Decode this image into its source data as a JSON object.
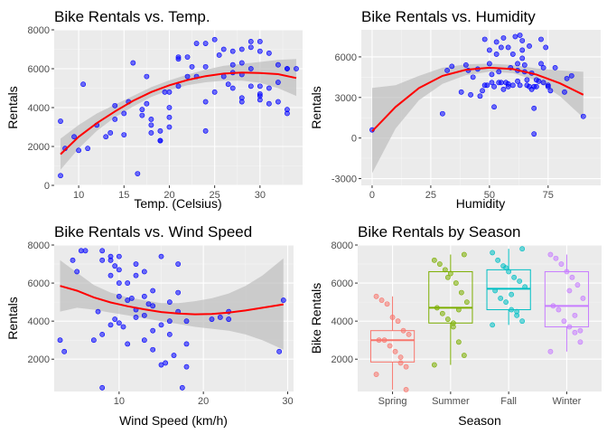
{
  "chart_data": [
    {
      "type": "scatter",
      "title": "Bike Rentals vs. Temp.",
      "xlabel": "Temp. (Celsius)",
      "ylabel": "Rentals",
      "xlim": [
        7.3,
        34.7
      ],
      "ylim": [
        0,
        8000
      ],
      "xticks": [
        10,
        15,
        20,
        25,
        30,
        35
      ],
      "yticks": [
        0,
        2000,
        4000,
        6000,
        8000
      ],
      "grid": true,
      "point_color": "#0000ff",
      "smooth_color": "#ff0000",
      "band_color": "#bebebe",
      "points": [
        [
          8,
          3300
        ],
        [
          8,
          500
        ],
        [
          8.5,
          1900
        ],
        [
          9.5,
          2500
        ],
        [
          10,
          1800
        ],
        [
          10.5,
          5200
        ],
        [
          11,
          1900
        ],
        [
          12,
          3100
        ],
        [
          13,
          2500
        ],
        [
          13.5,
          2700
        ],
        [
          14,
          4100
        ],
        [
          14,
          3400
        ],
        [
          15,
          3700
        ],
        [
          15,
          2600
        ],
        [
          15.5,
          4300
        ],
        [
          16,
          6300
        ],
        [
          16.5,
          600
        ],
        [
          17,
          3600
        ],
        [
          17,
          3900
        ],
        [
          17.5,
          5600
        ],
        [
          17.5,
          4200
        ],
        [
          18,
          3400
        ],
        [
          18,
          3100
        ],
        [
          18,
          2700
        ],
        [
          19,
          2300
        ],
        [
          19,
          2800
        ],
        [
          19,
          2300
        ],
        [
          19.5,
          4800
        ],
        [
          20,
          3000
        ],
        [
          20,
          3500
        ],
        [
          20,
          4000
        ],
        [
          20,
          4800
        ],
        [
          21,
          6600
        ],
        [
          21,
          5100
        ],
        [
          21,
          6500
        ],
        [
          22,
          5600
        ],
        [
          22,
          6600
        ],
        [
          22.5,
          6100
        ],
        [
          23,
          7300
        ],
        [
          23,
          5600
        ],
        [
          24,
          7300
        ],
        [
          24,
          6100
        ],
        [
          24,
          4300
        ],
        [
          24,
          2800
        ],
        [
          25,
          7500
        ],
        [
          25,
          4800
        ],
        [
          25.5,
          6700
        ],
        [
          26,
          7000
        ],
        [
          26,
          5600
        ],
        [
          26.5,
          5200
        ],
        [
          27,
          6200
        ],
        [
          27,
          6900
        ],
        [
          27,
          5800
        ],
        [
          27,
          5000
        ],
        [
          28,
          7000
        ],
        [
          28,
          5700
        ],
        [
          28,
          6300
        ],
        [
          28,
          4500
        ],
        [
          28,
          4300
        ],
        [
          29,
          7400
        ],
        [
          29,
          7100
        ],
        [
          29,
          6000
        ],
        [
          29,
          5100
        ],
        [
          30,
          7400
        ],
        [
          30,
          6900
        ],
        [
          30,
          5100
        ],
        [
          30,
          4700
        ],
        [
          30,
          4600
        ],
        [
          30,
          4400
        ],
        [
          31,
          6800
        ],
        [
          31,
          5000
        ],
        [
          31,
          4200
        ],
        [
          32,
          5300
        ],
        [
          32,
          6200
        ],
        [
          32,
          4300
        ],
        [
          33,
          6000
        ],
        [
          33,
          6000
        ],
        [
          33,
          3900
        ],
        [
          33,
          3700
        ],
        [
          34,
          6000
        ]
      ],
      "smooth": {
        "x": [
          8,
          10,
          12,
          14,
          16,
          18,
          20,
          22,
          24,
          26,
          28,
          30,
          32,
          34
        ],
        "y": [
          1600,
          2500,
          3200,
          3800,
          4350,
          4800,
          5150,
          5420,
          5620,
          5750,
          5800,
          5780,
          5720,
          5520
        ],
        "lower": [
          800,
          1900,
          2800,
          3500,
          4050,
          4550,
          4900,
          5150,
          5300,
          5380,
          5380,
          5280,
          5000,
          4600
        ],
        "upper": [
          2400,
          3100,
          3700,
          4150,
          4600,
          5050,
          5400,
          5700,
          5950,
          6150,
          6250,
          6350,
          6450,
          6500
        ]
      }
    },
    {
      "type": "scatter",
      "title": "Bike Rentals vs. Humidity",
      "xlabel": "Humidity",
      "ylabel": "Rentals",
      "xlim": [
        -4.6,
        97.4
      ],
      "ylim": [
        -3500,
        8000
      ],
      "xticks": [
        0,
        25,
        50,
        75
      ],
      "yticks": [
        -3000,
        0,
        3000,
        6000
      ],
      "grid": true,
      "point_color": "#0000ff",
      "smooth_color": "#ff0000",
      "band_color": "#bebebe",
      "points": [
        [
          0,
          600
        ],
        [
          30,
          1800
        ],
        [
          32,
          5000
        ],
        [
          34,
          5300
        ],
        [
          38,
          3400
        ],
        [
          40,
          5400
        ],
        [
          41,
          5000
        ],
        [
          42,
          3200
        ],
        [
          43,
          4500
        ],
        [
          45,
          5100
        ],
        [
          46,
          3100
        ],
        [
          47,
          3500
        ],
        [
          48,
          3900
        ],
        [
          48,
          7300
        ],
        [
          49,
          3900
        ],
        [
          50,
          5500
        ],
        [
          50,
          6500
        ],
        [
          51,
          4700
        ],
        [
          51,
          4100
        ],
        [
          52,
          2300
        ],
        [
          52,
          3800
        ],
        [
          53,
          7100
        ],
        [
          53,
          6200
        ],
        [
          54,
          4900
        ],
        [
          54,
          4100
        ],
        [
          55,
          4100
        ],
        [
          55,
          6700
        ],
        [
          56,
          7400
        ],
        [
          56,
          3600
        ],
        [
          57,
          4100
        ],
        [
          58,
          6700
        ],
        [
          58,
          4000
        ],
        [
          58,
          3800
        ],
        [
          59,
          5200
        ],
        [
          60,
          6200
        ],
        [
          60,
          3900
        ],
        [
          61,
          7500
        ],
        [
          62,
          5500
        ],
        [
          62,
          4200
        ],
        [
          62,
          5000
        ],
        [
          63,
          7600
        ],
        [
          63,
          3900
        ],
        [
          64,
          7200
        ],
        [
          64,
          6500
        ],
        [
          64,
          5900
        ],
        [
          65,
          5400
        ],
        [
          65,
          4900
        ],
        [
          66,
          3900
        ],
        [
          66,
          4300
        ],
        [
          67,
          6800
        ],
        [
          67,
          3800
        ],
        [
          68,
          4800
        ],
        [
          68,
          3600
        ],
        [
          69,
          2200
        ],
        [
          69,
          3800
        ],
        [
          69,
          300
        ],
        [
          70,
          4300
        ],
        [
          70,
          3800
        ],
        [
          71,
          4200
        ],
        [
          72,
          5500
        ],
        [
          72,
          7300
        ],
        [
          73,
          5200
        ],
        [
          73,
          4100
        ],
        [
          74,
          6700
        ],
        [
          75,
          3800
        ],
        [
          75,
          3900
        ],
        [
          76,
          3500
        ],
        [
          78,
          5200
        ],
        [
          82,
          3400
        ],
        [
          83,
          4400
        ],
        [
          85,
          4600
        ],
        [
          90,
          1600
        ]
      ],
      "smooth": {
        "x": [
          0,
          10,
          20,
          30,
          40,
          50,
          60,
          70,
          80,
          90
        ],
        "y": [
          500,
          2300,
          3700,
          4600,
          5050,
          5200,
          5100,
          4700,
          4050,
          3200
        ],
        "lower": [
          -2600,
          700,
          2800,
          4000,
          4650,
          4900,
          4800,
          4250,
          3100,
          1500
        ],
        "upper": [
          3700,
          3900,
          4600,
          5200,
          5450,
          5500,
          5400,
          5150,
          5000,
          4900
        ]
      }
    },
    {
      "type": "scatter",
      "title": "Bike Rentals vs. Wind Speed",
      "xlabel": "Wind Speed (km/h)",
      "ylabel": "Rentals",
      "xlim": [
        2.3,
        30.7
      ],
      "ylim": [
        300,
        8000
      ],
      "xticks": [
        10,
        20,
        30
      ],
      "yticks": [
        2000,
        4000,
        6000,
        8000
      ],
      "grid": true,
      "point_color": "#0000ff",
      "smooth_color": "#ff0000",
      "band_color": "#bebebe",
      "points": [
        [
          3,
          3000
        ],
        [
          3.5,
          2400
        ],
        [
          4.5,
          7200
        ],
        [
          5,
          6600
        ],
        [
          5.5,
          7700
        ],
        [
          6,
          7700
        ],
        [
          7,
          3000
        ],
        [
          7.5,
          4500
        ],
        [
          8,
          3300
        ],
        [
          8,
          7200
        ],
        [
          8,
          7700
        ],
        [
          8,
          500
        ],
        [
          9,
          7400
        ],
        [
          9,
          6400
        ],
        [
          9,
          3800
        ],
        [
          9,
          7200
        ],
        [
          9.5,
          6900
        ],
        [
          9.5,
          4100
        ],
        [
          10,
          7400
        ],
        [
          10,
          6700
        ],
        [
          10,
          6000
        ],
        [
          10,
          5300
        ],
        [
          10,
          3900
        ],
        [
          10.5,
          3700
        ],
        [
          11,
          6000
        ],
        [
          11,
          5100
        ],
        [
          11,
          2800
        ],
        [
          11.5,
          5200
        ],
        [
          12,
          7000
        ],
        [
          12,
          6400
        ],
        [
          12,
          4600
        ],
        [
          12,
          4200
        ],
        [
          13,
          6600
        ],
        [
          13,
          5300
        ],
        [
          13,
          4300
        ],
        [
          13,
          3000
        ],
        [
          13.5,
          4900
        ],
        [
          14,
          5600
        ],
        [
          14,
          4800
        ],
        [
          14,
          3500
        ],
        [
          14,
          2500
        ],
        [
          15,
          7400
        ],
        [
          15,
          3800
        ],
        [
          15,
          1700
        ],
        [
          15.5,
          1800
        ],
        [
          16,
          5000
        ],
        [
          16,
          4000
        ],
        [
          16,
          3300
        ],
        [
          16.5,
          2200
        ],
        [
          17,
          5500
        ],
        [
          17,
          4500
        ],
        [
          17,
          7000
        ],
        [
          18,
          4000
        ],
        [
          18,
          2800
        ],
        [
          18,
          1600
        ],
        [
          17.5,
          500
        ],
        [
          21,
          4100
        ],
        [
          22,
          4200
        ],
        [
          23,
          4100
        ],
        [
          23,
          4500
        ],
        [
          29,
          2400
        ],
        [
          29.5,
          5100
        ]
      ],
      "smooth": {
        "x": [
          3,
          5,
          7,
          9,
          11,
          13,
          15,
          17,
          19,
          21,
          23,
          25,
          27,
          29.5
        ],
        "y": [
          5850,
          5600,
          5250,
          4980,
          4780,
          4620,
          4480,
          4400,
          4360,
          4380,
          4450,
          4560,
          4700,
          4880
        ],
        "lower": [
          4500,
          4700,
          4600,
          4450,
          4300,
          4150,
          4000,
          3850,
          3700,
          3600,
          3500,
          3300,
          3000,
          2500
        ],
        "upper": [
          7200,
          6550,
          5900,
          5500,
          5250,
          5100,
          4950,
          4950,
          5050,
          5200,
          5450,
          5850,
          6400,
          7300
        ]
      }
    },
    {
      "type": "boxplot",
      "title": "Bike Rentals by Season",
      "xlabel": "Season",
      "ylabel": "Bike Rentals",
      "ylim": [
        300,
        8000
      ],
      "yticks": [
        2000,
        4000,
        6000,
        8000
      ],
      "categories": [
        "Spring",
        "Summer",
        "Fall",
        "Winter"
      ],
      "colors": [
        "#f8766d",
        "#7cae00",
        "#00bfc4",
        "#c77cff"
      ],
      "grid": true,
      "boxes": [
        {
          "min": 400,
          "q1": 1850,
          "median": 3000,
          "q3": 3500,
          "max": 5300
        },
        {
          "min": 1700,
          "q1": 3900,
          "median": 4700,
          "q3": 6600,
          "max": 7500
        },
        {
          "min": 3800,
          "q1": 4600,
          "median": 5700,
          "q3": 6700,
          "max": 7800
        },
        {
          "min": 2400,
          "q1": 3700,
          "median": 4800,
          "q3": 6600,
          "max": 7500
        }
      ],
      "points": [
        [
          1200,
          400,
          1800,
          2400,
          2700,
          3000,
          3000,
          3300,
          3500,
          4000,
          4200,
          4900,
          5100,
          5300,
          1600,
          2100
        ],
        [
          1700,
          2200,
          2900,
          3700,
          4100,
          4400,
          4700,
          5000,
          5500,
          6000,
          6500,
          6700,
          7000,
          7200,
          7500,
          4600,
          3900,
          6300
        ],
        [
          3800,
          4000,
          4300,
          4600,
          5000,
          5200,
          5600,
          5800,
          6100,
          6300,
          6600,
          6900,
          7200,
          7600,
          7800,
          4500,
          5400,
          6800
        ],
        [
          2400,
          2900,
          3400,
          3700,
          4000,
          4600,
          4800,
          5200,
          5900,
          6300,
          6600,
          7000,
          7300,
          7500,
          3500,
          4300,
          5600
        ]
      ]
    }
  ]
}
